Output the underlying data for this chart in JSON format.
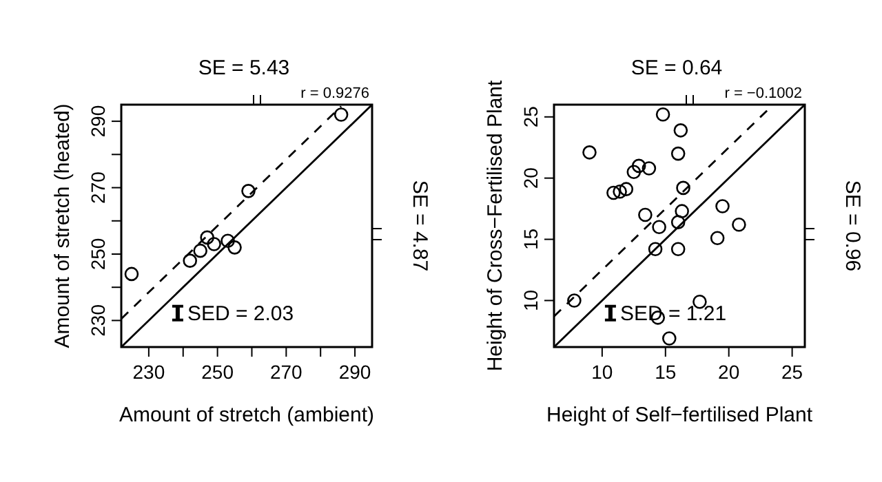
{
  "chart_data": [
    {
      "type": "scatter",
      "xlabel": "Amount of stretch (ambient)",
      "ylabel": "Amount of stretch (heated)",
      "x2label": "SE = 5.43",
      "y2label": "SE = 4.87",
      "xlim": [
        222,
        295
      ],
      "ylim": [
        222,
        295
      ],
      "xticks": [
        230,
        {
          "value": 240,
          "label": null
        },
        250,
        {
          "value": 260,
          "label": null
        },
        270,
        {
          "value": 280,
          "label": null
        },
        290
      ],
      "yticks": [
        230,
        {
          "value": 240,
          "label": null
        },
        250,
        {
          "value": 260,
          "label": null
        },
        270,
        {
          "value": 280,
          "label": null
        },
        290
      ],
      "series": [
        {
          "type": "scatter",
          "marker": "circle",
          "color": "#000000",
          "x": [
            225,
            242,
            245,
            247,
            249,
            253,
            255,
            259,
            286
          ],
          "values": [
            244,
            248,
            251,
            255,
            253,
            254,
            252,
            269,
            292
          ]
        },
        {
          "type": "line",
          "color": "#000000",
          "line_style": "solid",
          "x": [
            222,
            295
          ],
          "values": [
            222,
            295
          ]
        },
        {
          "type": "line",
          "color": "#000000",
          "line_style": "dashed",
          "x": [
            222,
            286
          ],
          "values": [
            230.5,
            294.5
          ]
        }
      ],
      "annotations": [
        "r = 0.9276",
        "SED = 2.03"
      ]
    },
    {
      "type": "scatter",
      "xlabel": "Height of Self−fertilised Plant",
      "ylabel": "Height of Cross−Fertilised Plant",
      "x2label": "SE = 0.64",
      "y2label": "SE = 0.96",
      "xlim": [
        6.2,
        26
      ],
      "ylim": [
        6.2,
        26
      ],
      "xticks": [
        10,
        15,
        20,
        25
      ],
      "yticks": [
        10,
        15,
        20,
        25
      ],
      "series": [
        {
          "type": "scatter",
          "marker": "circle",
          "color": "#000000",
          "x": [
            14.8,
            16.2,
            9.0,
            16.0,
            12.9,
            12.5,
            13.7,
            10.9,
            11.4,
            11.9,
            16.4,
            19.5,
            16.3,
            13.4,
            14.5,
            20.8,
            16.0,
            19.1,
            14.2,
            16.0,
            7.8,
            17.7,
            14.4,
            15.3
          ],
          "values": [
            25.2,
            23.9,
            22.1,
            22.0,
            21.0,
            20.5,
            20.8,
            18.8,
            18.9,
            19.1,
            19.2,
            17.7,
            17.3,
            17.0,
            16.0,
            16.2,
            16.4,
            15.1,
            14.2,
            14.2,
            10.0,
            9.9,
            8.6,
            6.9
          ]
        },
        {
          "type": "line",
          "color": "#000000",
          "line_style": "solid",
          "x": [
            6.2,
            26
          ],
          "values": [
            6.2,
            26
          ]
        },
        {
          "type": "line",
          "color": "#000000",
          "line_style": "dashed",
          "x": [
            6.2,
            23.4
          ],
          "values": [
            8.7,
            25.9
          ]
        }
      ],
      "annotations": [
        "r = −0.1002",
        "SED = 1.21"
      ]
    }
  ]
}
